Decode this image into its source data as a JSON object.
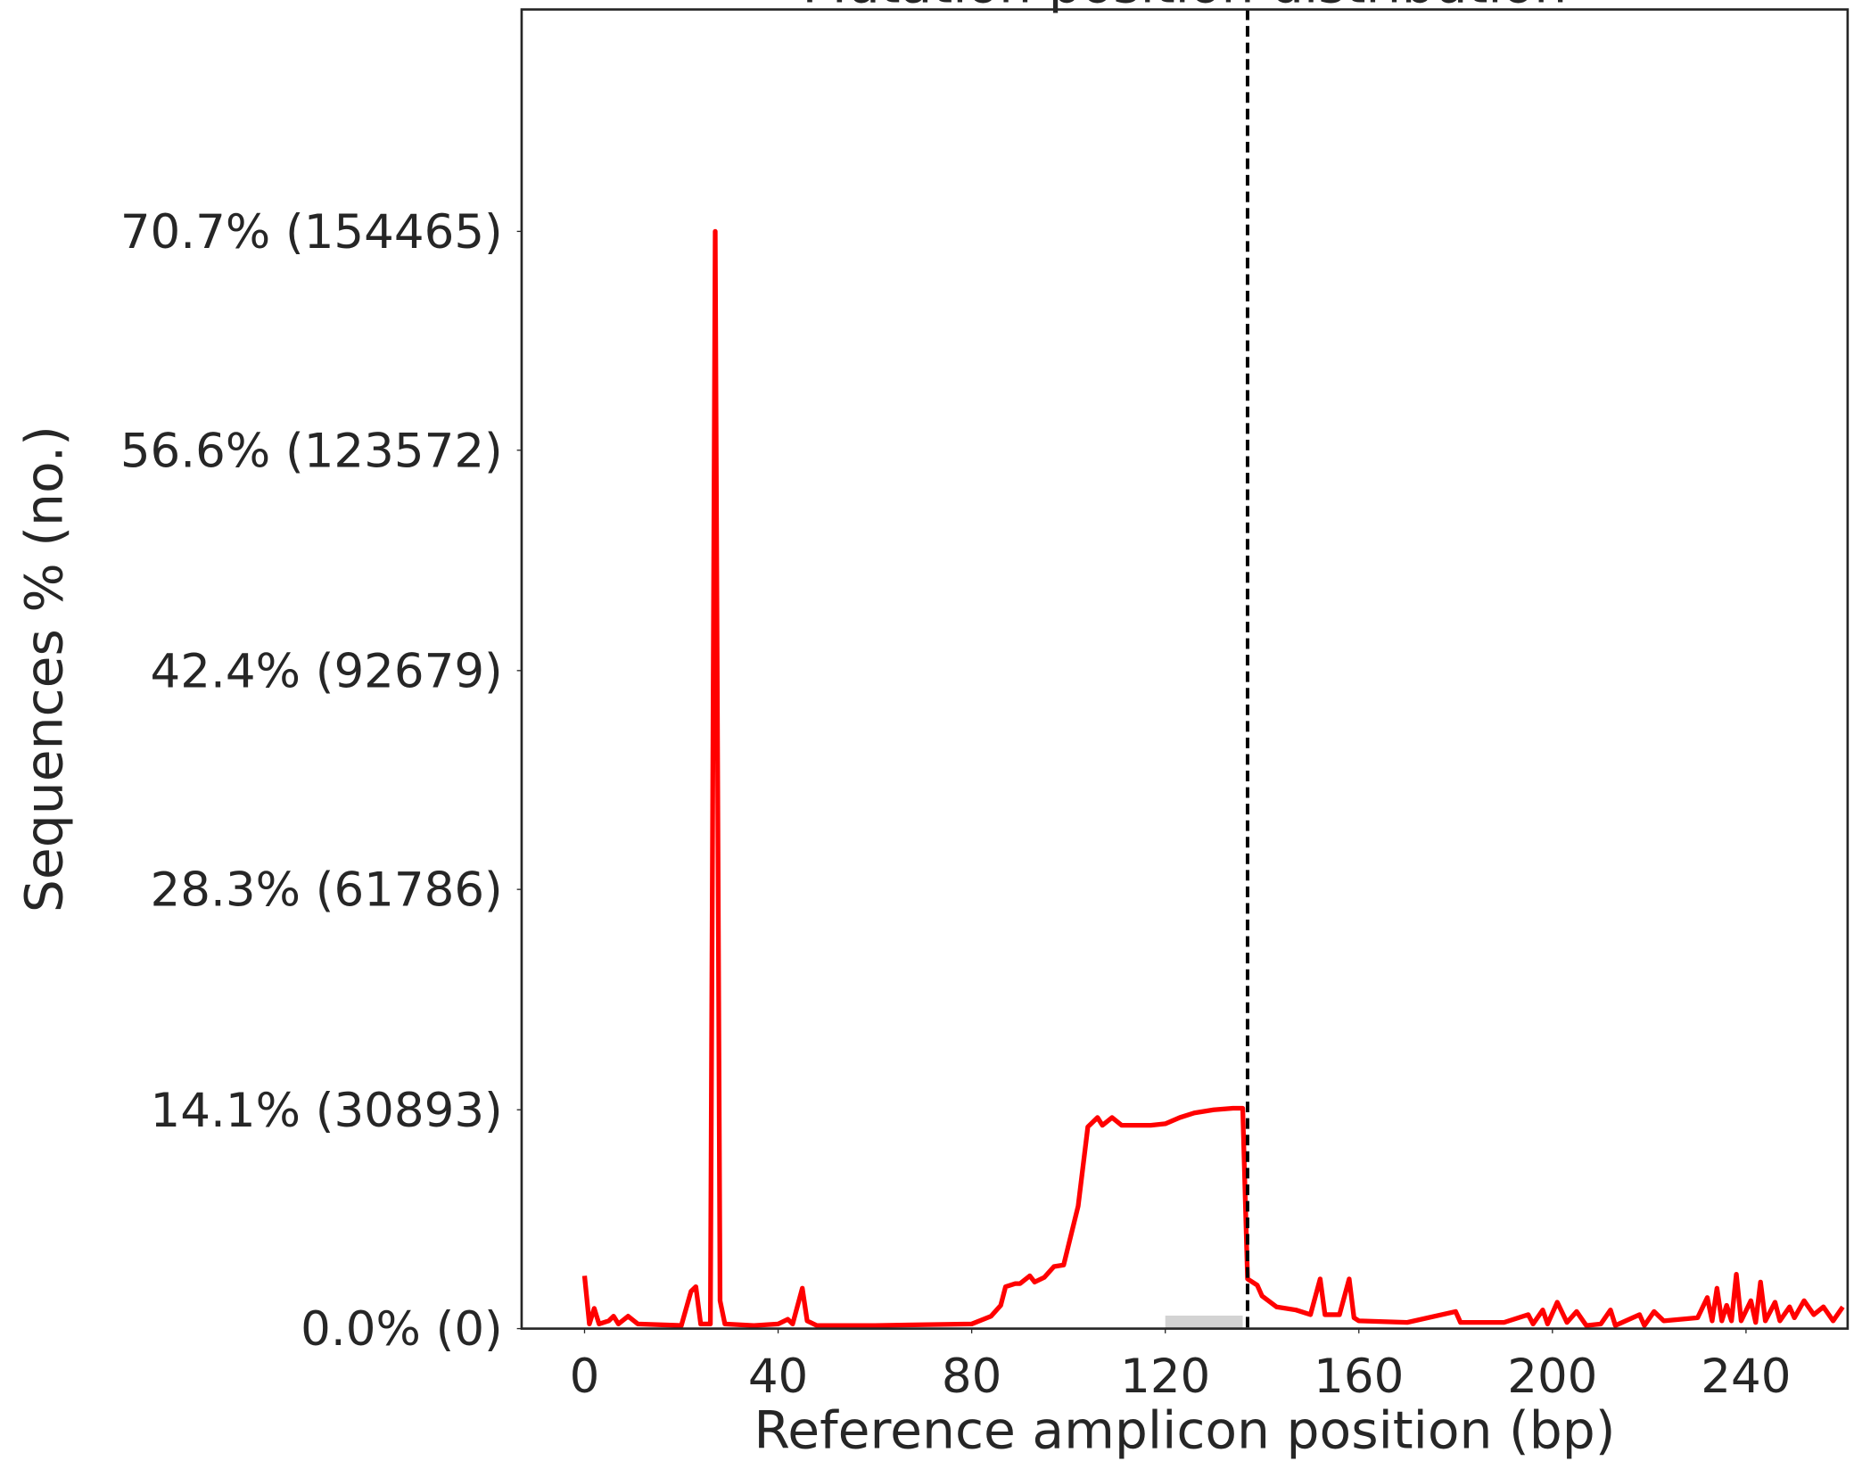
{
  "chart_data": {
    "type": "line",
    "title": "Mutation position distribution",
    "xlabel": "Reference amplicon position (bp)",
    "ylabel": "Sequences % (no.)",
    "x": [
      0,
      1,
      2,
      3,
      5,
      6,
      7,
      9,
      11,
      20,
      22,
      23,
      24,
      26,
      27,
      28,
      29,
      35,
      40,
      42,
      43,
      45,
      46,
      48,
      60,
      80,
      84,
      86,
      87,
      89,
      90,
      92,
      93,
      95,
      97,
      99,
      102,
      104,
      106,
      107,
      109,
      111,
      117,
      120,
      123,
      126,
      130,
      134,
      136,
      137,
      139,
      140,
      143,
      147,
      150,
      152,
      153,
      156,
      158,
      159,
      160,
      170,
      180,
      181,
      190,
      195,
      196,
      198,
      199,
      201,
      203,
      205,
      207,
      210,
      212,
      213,
      218,
      219,
      221,
      223,
      230,
      232,
      233,
      234,
      235,
      236,
      237,
      238,
      239,
      241,
      242,
      243,
      244,
      246,
      247,
      249,
      250,
      252,
      254,
      256,
      258,
      260
    ],
    "series": [
      {
        "name": "Mutation position",
        "color": "#ff0000",
        "values": [
          3.4,
          0.3,
          1.3,
          0.3,
          0.5,
          0.8,
          0.3,
          0.8,
          0.3,
          0.2,
          2.4,
          2.7,
          0.3,
          0.3,
          70.7,
          1.8,
          0.3,
          0.2,
          0.3,
          0.6,
          0.3,
          2.6,
          0.5,
          0.2,
          0.2,
          0.3,
          0.8,
          1.5,
          2.7,
          2.9,
          2.9,
          3.4,
          3.0,
          3.3,
          4.0,
          4.1,
          7.9,
          13.0,
          13.6,
          13.1,
          13.6,
          13.1,
          13.1,
          13.2,
          13.6,
          13.9,
          14.1,
          14.2,
          14.2,
          3.2,
          2.8,
          2.1,
          1.4,
          1.2,
          0.9,
          3.2,
          0.9,
          0.9,
          3.2,
          0.7,
          0.5,
          0.4,
          1.1,
          0.4,
          0.4,
          0.9,
          0.3,
          1.2,
          0.3,
          1.7,
          0.4,
          1.1,
          0.2,
          0.3,
          1.2,
          0.2,
          0.9,
          0.2,
          1.1,
          0.5,
          0.7,
          2.0,
          0.5,
          2.6,
          0.5,
          1.5,
          0.5,
          3.5,
          0.5,
          1.8,
          0.4,
          3.0,
          0.5,
          1.7,
          0.5,
          1.4,
          0.7,
          1.8,
          0.9,
          1.4,
          0.5,
          1.4
        ]
      }
    ],
    "xlim": [
      -13,
      261
    ],
    "ylim": [
      0,
      85
    ],
    "xticks": [
      0,
      40,
      80,
      120,
      160,
      200,
      240
    ],
    "yticks": [
      {
        "value": 0,
        "label": "0.0% (0)"
      },
      {
        "value": 14.1,
        "label": "14.1% (30893)"
      },
      {
        "value": 28.3,
        "label": "28.3% (61786)"
      },
      {
        "value": 42.4,
        "label": "42.4% (92679)"
      },
      {
        "value": 56.6,
        "label": "56.6% (123572)"
      },
      {
        "value": 70.7,
        "label": "70.7% (154465)"
      }
    ],
    "cut_site": 137,
    "sgrna_interval": [
      120,
      136
    ],
    "grid": false
  }
}
